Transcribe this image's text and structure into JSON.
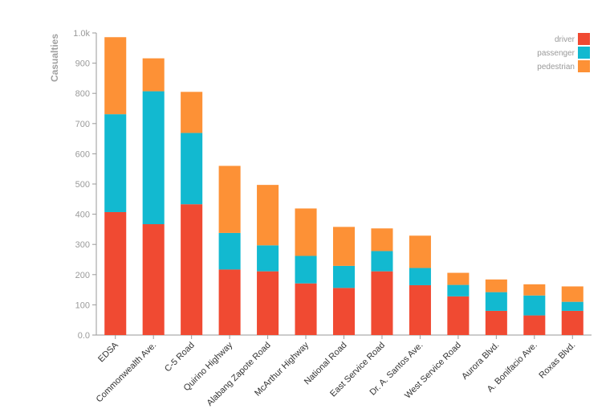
{
  "chart_data": {
    "type": "bar",
    "stacked": true,
    "title": "",
    "xlabel": "",
    "ylabel": "Casualties",
    "ylim": [
      0,
      1000
    ],
    "yticks": [
      "0.0",
      "100",
      "200",
      "300",
      "400",
      "500",
      "600",
      "700",
      "800",
      "900",
      "1.0k"
    ],
    "grid": false,
    "legend_position": "top-right",
    "categories": [
      "EDSA",
      "Commonwealth Ave.",
      "C-5 Road",
      "Quirino Highway",
      "Alabang Zapote Road",
      "McArthur Highway",
      "National Road",
      "East Service Road",
      "Dr. A. Santos Ave.",
      "West Service Road",
      "Aurora Blvd.",
      "A. Bonifacio Ave.",
      "Roxas Blvd."
    ],
    "series": [
      {
        "name": "driver",
        "color": "#f04a32",
        "values": [
          407,
          367,
          433,
          217,
          211,
          171,
          156,
          211,
          165,
          128,
          80,
          65,
          80
        ]
      },
      {
        "name": "passenger",
        "color": "#12b9d0",
        "values": [
          324,
          440,
          236,
          121,
          86,
          91,
          73,
          67,
          57,
          38,
          62,
          66,
          30
        ]
      },
      {
        "name": "pedestrian",
        "color": "#fd9136",
        "values": [
          255,
          109,
          136,
          222,
          200,
          157,
          129,
          75,
          107,
          40,
          42,
          37,
          51
        ]
      }
    ]
  }
}
